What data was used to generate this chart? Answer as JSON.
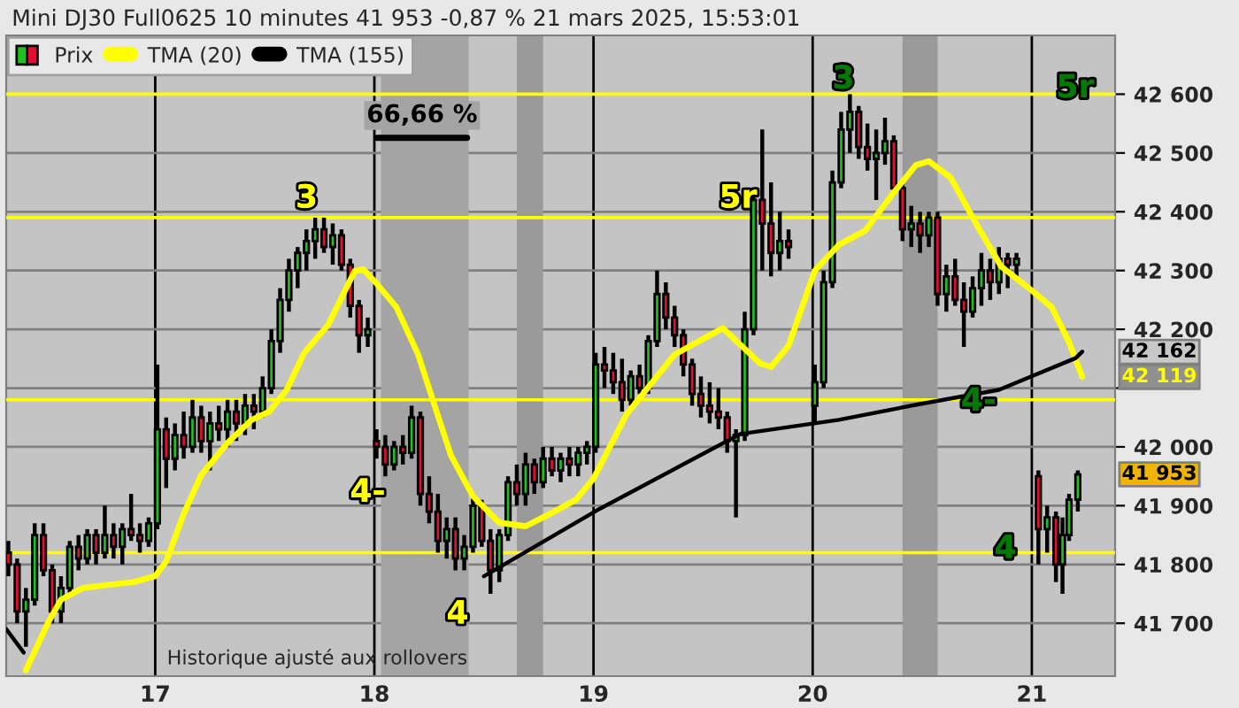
{
  "chart_data": {
    "type": "candlestick",
    "title": "Mini DJ30 Full0625 10 minutes 41 953 -0,87 % 21 mars 2025, 15:53:01",
    "xlim": [
      16.32,
      21.38
    ],
    "xticks": [
      17,
      18,
      19,
      20,
      21
    ],
    "ylim": [
      41610,
      42700
    ],
    "yticks": [
      {
        "value": 41700,
        "label": "41 700"
      },
      {
        "value": 41800,
        "label": "41 800"
      },
      {
        "value": 41900,
        "label": "41 900"
      },
      {
        "value": 42000,
        "label": "42 000"
      },
      {
        "value": 42100,
        "label": null
      },
      {
        "value": 42200,
        "label": "42 200"
      },
      {
        "value": 42300,
        "label": "42 300"
      },
      {
        "value": 42400,
        "label": "42 400"
      },
      {
        "value": 42500,
        "label": "42 500"
      },
      {
        "value": 42600,
        "label": "42 600"
      }
    ],
    "grid": true,
    "legend": "top left",
    "series": [
      {
        "name": "Prix",
        "x": [
          16.33,
          16.37,
          16.41,
          16.45,
          16.49,
          16.53,
          16.57,
          16.61,
          16.65,
          16.69,
          16.73,
          16.77,
          16.81,
          16.85,
          16.89,
          16.93,
          16.97,
          17.01,
          17.05,
          17.09,
          17.13,
          17.17,
          17.21,
          17.25,
          17.29,
          17.33,
          17.37,
          17.41,
          17.45,
          17.49,
          17.53,
          17.57,
          17.61,
          17.65,
          17.69,
          17.73,
          17.77,
          17.81,
          17.85,
          17.89,
          17.93,
          17.97,
          18.01,
          18.05,
          18.09,
          18.13,
          18.17,
          18.21,
          18.25,
          18.29,
          18.33,
          18.37,
          18.41,
          18.45,
          18.49,
          18.53,
          18.57,
          18.61,
          18.65,
          18.69,
          18.73,
          18.77,
          18.81,
          18.85,
          18.89,
          18.93,
          18.97,
          19.01,
          19.05,
          19.09,
          19.13,
          19.17,
          19.21,
          19.25,
          19.29,
          19.33,
          19.37,
          19.41,
          19.45,
          19.49,
          19.53,
          19.57,
          19.61,
          19.65,
          19.69,
          19.73,
          19.77,
          19.81,
          19.85,
          19.89,
          20.01,
          20.05,
          20.09,
          20.13,
          20.17,
          20.21,
          20.25,
          20.29,
          20.33,
          20.37,
          20.41,
          20.45,
          20.49,
          20.53,
          20.57,
          20.61,
          20.65,
          20.69,
          20.73,
          20.77,
          20.81,
          20.85,
          20.89,
          20.93,
          21.03,
          21.07,
          21.11,
          21.14,
          21.17,
          21.21
        ],
        "ohlc": [
          [
            41820,
            41840,
            41780,
            41800
          ],
          [
            41800,
            41810,
            41700,
            41720
          ],
          [
            41720,
            41760,
            41660,
            41740
          ],
          [
            41740,
            41870,
            41730,
            41850
          ],
          [
            41850,
            41870,
            41780,
            41790
          ],
          [
            41790,
            41800,
            41700,
            41720
          ],
          [
            41720,
            41780,
            41700,
            41760
          ],
          [
            41760,
            41840,
            41750,
            41830
          ],
          [
            41830,
            41850,
            41790,
            41810
          ],
          [
            41810,
            41860,
            41800,
            41850
          ],
          [
            41850,
            41860,
            41800,
            41820
          ],
          [
            41820,
            41900,
            41810,
            41850
          ],
          [
            41850,
            41870,
            41810,
            41830
          ],
          [
            41830,
            41870,
            41800,
            41860
          ],
          [
            41860,
            41920,
            41840,
            41850
          ],
          [
            41850,
            41870,
            41820,
            41840
          ],
          [
            41840,
            41880,
            41830,
            41870
          ],
          [
            41870,
            42140,
            41860,
            42030
          ],
          [
            42030,
            42050,
            41930,
            41980
          ],
          [
            41980,
            42040,
            41960,
            42020
          ],
          [
            42020,
            42060,
            41980,
            42000
          ],
          [
            42000,
            42080,
            41990,
            42050
          ],
          [
            42050,
            42070,
            41990,
            42010
          ],
          [
            42010,
            42060,
            41960,
            42040
          ],
          [
            42040,
            42070,
            42010,
            42030
          ],
          [
            42030,
            42080,
            42000,
            42060
          ],
          [
            42060,
            42080,
            42010,
            42040
          ],
          [
            42040,
            42090,
            42020,
            42070
          ],
          [
            42070,
            42090,
            42030,
            42060
          ],
          [
            42060,
            42120,
            42050,
            42100
          ],
          [
            42100,
            42200,
            42090,
            42180
          ],
          [
            42180,
            42270,
            42160,
            42250
          ],
          [
            42250,
            42320,
            42230,
            42300
          ],
          [
            42300,
            42340,
            42270,
            42330
          ],
          [
            42330,
            42370,
            42300,
            42350
          ],
          [
            42350,
            42390,
            42320,
            42370
          ],
          [
            42370,
            42390,
            42330,
            42340
          ],
          [
            42340,
            42380,
            42310,
            42360
          ],
          [
            42360,
            42370,
            42300,
            42310
          ],
          [
            42310,
            42320,
            42220,
            42240
          ],
          [
            42240,
            42250,
            42160,
            42190
          ],
          [
            42190,
            42220,
            42170,
            42200
          ],
          [
            42010,
            42030,
            41980,
            42000
          ],
          [
            42000,
            42020,
            41950,
            41970
          ],
          [
            41970,
            42010,
            41960,
            42000
          ],
          [
            42000,
            42020,
            41970,
            41990
          ],
          [
            41990,
            42070,
            41980,
            42050
          ],
          [
            42050,
            42060,
            41900,
            41920
          ],
          [
            41920,
            41950,
            41870,
            41890
          ],
          [
            41890,
            41920,
            41820,
            41840
          ],
          [
            41840,
            41880,
            41810,
            41860
          ],
          [
            41860,
            41880,
            41790,
            41810
          ],
          [
            41810,
            41850,
            41790,
            41830
          ],
          [
            41830,
            41920,
            41820,
            41900
          ],
          [
            41900,
            41910,
            41830,
            41840
          ],
          [
            41840,
            41860,
            41750,
            41790
          ],
          [
            41790,
            41860,
            41770,
            41850
          ],
          [
            41850,
            41950,
            41840,
            41940
          ],
          [
            41940,
            41970,
            41900,
            41920
          ],
          [
            41920,
            41990,
            41900,
            41970
          ],
          [
            41970,
            41980,
            41920,
            41940
          ],
          [
            41940,
            42000,
            41930,
            41980
          ],
          [
            41980,
            42000,
            41950,
            41960
          ],
          [
            41960,
            41990,
            41940,
            41980
          ],
          [
            41980,
            42000,
            41950,
            41970
          ],
          [
            41970,
            42000,
            41950,
            41990
          ],
          [
            41990,
            42010,
            41970,
            42000
          ],
          [
            42000,
            42160,
            41990,
            42140
          ],
          [
            42140,
            42170,
            42100,
            42130
          ],
          [
            42130,
            42160,
            42090,
            42110
          ],
          [
            42110,
            42150,
            42060,
            42080
          ],
          [
            42080,
            42130,
            42070,
            42120
          ],
          [
            42120,
            42140,
            42090,
            42100
          ],
          [
            42100,
            42190,
            42090,
            42180
          ],
          [
            42180,
            42300,
            42170,
            42260
          ],
          [
            42260,
            42280,
            42200,
            42220
          ],
          [
            42220,
            42240,
            42170,
            42190
          ],
          [
            42190,
            42200,
            42120,
            42140
          ],
          [
            42140,
            42150,
            42070,
            42090
          ],
          [
            42090,
            42120,
            42050,
            42070
          ],
          [
            42070,
            42110,
            42040,
            42060
          ],
          [
            42060,
            42100,
            42030,
            42050
          ],
          [
            42050,
            42060,
            41990,
            42010
          ],
          [
            42010,
            42030,
            41880,
            42020
          ],
          [
            42020,
            42230,
            42010,
            42200
          ],
          [
            42200,
            42440,
            42190,
            42420
          ],
          [
            42420,
            42540,
            42300,
            42380
          ],
          [
            42380,
            42450,
            42290,
            42330
          ],
          [
            42330,
            42400,
            42300,
            42350
          ],
          [
            42350,
            42370,
            42320,
            42340
          ],
          [
            42070,
            42140,
            42040,
            42110
          ],
          [
            42110,
            42300,
            42100,
            42280
          ],
          [
            42280,
            42470,
            42270,
            42450
          ],
          [
            42450,
            42570,
            42440,
            42540
          ],
          [
            42540,
            42600,
            42500,
            42570
          ],
          [
            42570,
            42580,
            42490,
            42510
          ],
          [
            42510,
            42550,
            42470,
            42490
          ],
          [
            42490,
            42540,
            42420,
            42500
          ],
          [
            42500,
            42560,
            42480,
            42520
          ],
          [
            42520,
            42530,
            42430,
            42440
          ],
          [
            42440,
            42450,
            42350,
            42370
          ],
          [
            42370,
            42410,
            42340,
            42380
          ],
          [
            42380,
            42400,
            42330,
            42360
          ],
          [
            42360,
            42400,
            42340,
            42390
          ],
          [
            42390,
            42400,
            42240,
            42260
          ],
          [
            42260,
            42310,
            42230,
            42290
          ],
          [
            42290,
            42320,
            42240,
            42250
          ],
          [
            42250,
            42280,
            42170,
            42230
          ],
          [
            42230,
            42290,
            42220,
            42270
          ],
          [
            42270,
            42330,
            42240,
            42300
          ],
          [
            42300,
            42320,
            42250,
            42280
          ],
          [
            42280,
            42340,
            42260,
            42320
          ],
          [
            42320,
            42330,
            42270,
            42310
          ],
          [
            42310,
            42330,
            42290,
            42320
          ],
          [
            41950,
            41960,
            41800,
            41860
          ],
          [
            41860,
            41900,
            41820,
            41880
          ],
          [
            41880,
            41890,
            41770,
            41800
          ],
          [
            41800,
            41880,
            41750,
            41850
          ],
          [
            41850,
            41920,
            41840,
            41910
          ],
          [
            41910,
            41960,
            41890,
            41953
          ]
        ]
      },
      {
        "name": "TMA (20)",
        "type": "line",
        "color": "#ffff00",
        "x": [
          16.41,
          16.51,
          16.57,
          16.67,
          16.78,
          16.9,
          17.0,
          17.05,
          17.13,
          17.21,
          17.33,
          17.44,
          17.52,
          17.6,
          17.68,
          17.79,
          17.91,
          17.95,
          18.01,
          18.1,
          18.2,
          18.27,
          18.35,
          18.45,
          18.57,
          18.69,
          18.8,
          18.92,
          19.0,
          19.15,
          19.37,
          19.59,
          19.76,
          19.81,
          19.89,
          20.01,
          20.12,
          20.24,
          20.36,
          20.47,
          20.53,
          20.63,
          20.75,
          20.86,
          20.98,
          21.09,
          21.17,
          21.23
        ],
        "values": [
          41620,
          41700,
          41740,
          41760,
          41765,
          41770,
          41780,
          41805,
          41886,
          41952,
          42007,
          42046,
          42060,
          42097,
          42160,
          42208,
          42299,
          42302,
          42278,
          42238,
          42157,
          42076,
          41985,
          41916,
          41871,
          41865,
          41886,
          41910,
          41946,
          42055,
          42157,
          42202,
          42142,
          42136,
          42172,
          42300,
          42344,
          42368,
          42428,
          42479,
          42486,
          42458,
          42377,
          42307,
          42272,
          42238,
          42178,
          42119
        ]
      },
      {
        "name": "TMA (155)",
        "type": "line",
        "color": "#000000",
        "x": [
          16.32,
          16.4,
          16.74,
          17.5,
          18.0,
          18.5,
          19.03,
          19.67,
          20.12,
          20.49,
          20.85,
          21.2,
          21.23
        ],
        "values": [
          41690,
          41650,
          null,
          null,
          null,
          41780,
          41895,
          42022,
          42046,
          42073,
          42097,
          42151,
          42162
        ]
      }
    ],
    "ref_lines": [
      {
        "axis": "y",
        "value": 42600,
        "color": "#ffff00"
      },
      {
        "axis": "y",
        "value": 42390,
        "color": "#ffff00"
      },
      {
        "axis": "y",
        "value": 42080,
        "color": "#ffff00"
      },
      {
        "axis": "y",
        "value": 41820,
        "color": "#ffff00"
      }
    ],
    "bands": [
      {
        "axis": "x",
        "from": 18.03,
        "to": 18.43,
        "color": "#a4a4a4"
      },
      {
        "axis": "x",
        "from": 18.65,
        "to": 18.77,
        "color": "#9a9a9a"
      },
      {
        "axis": "x",
        "from": 20.41,
        "to": 20.57,
        "color": "#9a9a9a"
      }
    ],
    "annotations": [
      "66,66 %",
      "3",
      "5r",
      "4-",
      "4",
      "3",
      "5r",
      "4-",
      "4",
      "42 162",
      "42 119",
      "41 953",
      "Historique ajusté aux rollovers"
    ]
  }
}
